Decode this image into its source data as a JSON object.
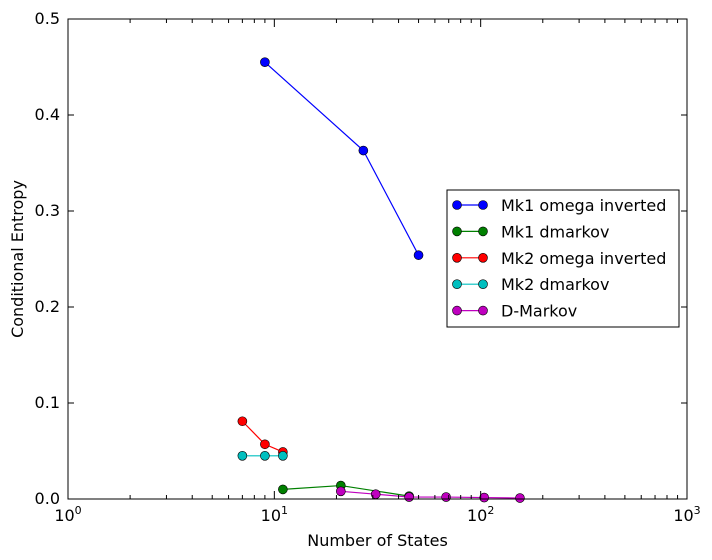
{
  "chart_data": {
    "type": "line",
    "xlabel": "Number of States",
    "ylabel": "Conditional Entropy",
    "xscale": "log",
    "xlim": [
      1,
      1000
    ],
    "ylim": [
      0,
      0.5
    ],
    "xticks": [
      {
        "value": 1,
        "base": "10",
        "exp": "0"
      },
      {
        "value": 10,
        "base": "10",
        "exp": "1"
      },
      {
        "value": 100,
        "base": "10",
        "exp": "2"
      },
      {
        "value": 1000,
        "base": "10",
        "exp": "3"
      }
    ],
    "yticks": [
      {
        "value": 0,
        "label": "0.0"
      },
      {
        "value": 0.1,
        "label": "0.1"
      },
      {
        "value": 0.2,
        "label": "0.2"
      },
      {
        "value": 0.3,
        "label": "0.3"
      },
      {
        "value": 0.4,
        "label": "0.4"
      },
      {
        "value": 0.5,
        "label": "0.5"
      }
    ],
    "grid": false,
    "legend_position": "center-right",
    "series": [
      {
        "name": "Mk1 omega inverted",
        "color": "#0000ff",
        "x": [
          9,
          27,
          50
        ],
        "y": [
          0.455,
          0.363,
          0.254
        ]
      },
      {
        "name": "Mk1 dmarkov",
        "color": "#008000",
        "x": [
          11,
          21,
          45
        ],
        "y": [
          0.01,
          0.014,
          0.003
        ]
      },
      {
        "name": "Mk2 omega inverted",
        "color": "#ff0000",
        "x": [
          7,
          9,
          11
        ],
        "y": [
          0.081,
          0.057,
          0.049
        ]
      },
      {
        "name": "Mk2 dmarkov",
        "color": "#00bfbf",
        "x": [
          7,
          9,
          11
        ],
        "y": [
          0.045,
          0.045,
          0.045
        ]
      },
      {
        "name": "D-Markov",
        "color": "#bf00bf",
        "x": [
          21,
          31,
          45,
          68,
          104,
          155
        ],
        "y": [
          0.008,
          0.005,
          0.002,
          0.002,
          0.0015,
          0.001
        ]
      }
    ]
  }
}
